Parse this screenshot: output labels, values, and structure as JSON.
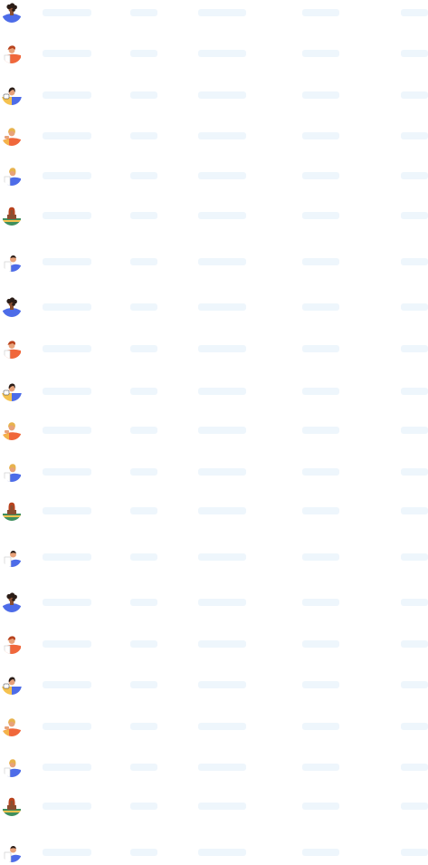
{
  "colors": {
    "skeleton": "#eef6fc",
    "blue": "#4d6ce8",
    "orange": "#f0673b",
    "yellow": "#f5c24f",
    "green": "#3f8f5d",
    "hair_dark": "#2b1d17",
    "hair_auburn": "#b8431e",
    "hair_blonde": "#e7b24d",
    "skin_dark": "#8a4f31",
    "skin_tan": "#e8a27a",
    "skin_light": "#f6d1b4"
  },
  "list": {
    "rows": [
      {
        "avatar": "avatar-dark-curly-blue-icon"
      },
      {
        "avatar": "avatar-red-hair-orange-icon"
      },
      {
        "avatar": "avatar-black-hair-yellow-blue-icon"
      },
      {
        "avatar": "avatar-blonde-orange-icon"
      },
      {
        "avatar": "avatar-blonde-blue-icon"
      },
      {
        "avatar": "avatar-red-hair-green-icon"
      },
      {
        "avatar": "avatar-bald-blue-icon"
      },
      {
        "avatar": "avatar-dark-curly-blue-icon"
      },
      {
        "avatar": "avatar-red-hair-orange-icon"
      },
      {
        "avatar": "avatar-black-hair-yellow-blue-icon"
      },
      {
        "avatar": "avatar-blonde-orange-icon"
      },
      {
        "avatar": "avatar-blonde-blue-icon"
      },
      {
        "avatar": "avatar-red-hair-green-icon"
      },
      {
        "avatar": "avatar-bald-blue-icon"
      },
      {
        "avatar": "avatar-dark-curly-blue-icon"
      },
      {
        "avatar": "avatar-red-hair-orange-icon"
      },
      {
        "avatar": "avatar-black-hair-yellow-blue-icon"
      },
      {
        "avatar": "avatar-blonde-orange-icon"
      },
      {
        "avatar": "avatar-blonde-blue-icon"
      },
      {
        "avatar": "avatar-red-hair-green-icon"
      },
      {
        "avatar": "avatar-bald-blue-icon"
      }
    ]
  }
}
